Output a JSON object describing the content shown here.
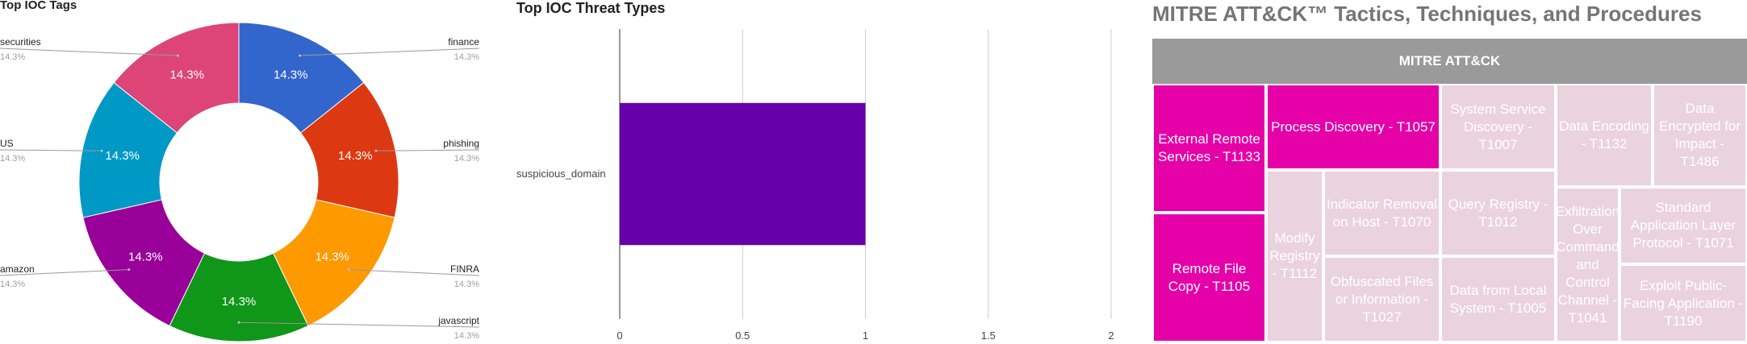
{
  "chart_data": [
    {
      "type": "pie",
      "donut": true,
      "title": "Top IOC Tags",
      "categories": [
        "finance",
        "phishing",
        "FINRA",
        "javascript",
        "amazon",
        "US",
        "securities"
      ],
      "values": [
        14.3,
        14.3,
        14.3,
        14.3,
        14.3,
        14.3,
        14.3
      ],
      "slice_labels": [
        "14.3%",
        "14.3%",
        "14.3%",
        "14.3%",
        "14.3%",
        "14.3%",
        "14.3%"
      ],
      "colors": [
        "#3366cc",
        "#dc3912",
        "#ff9900",
        "#109618",
        "#990099",
        "#0099c6",
        "#dd4477"
      ],
      "legend": "labeled callouts on both sides"
    },
    {
      "type": "bar",
      "orientation": "horizontal",
      "title": "Top IOC Threat Types",
      "categories": [
        "suspicious_domain"
      ],
      "values": [
        1
      ],
      "xlim": [
        0,
        2
      ],
      "xticks": [
        "0",
        "0.5",
        "1",
        "1.5",
        "2"
      ],
      "color": "#6600aa",
      "grid": true
    },
    {
      "type": "treemap",
      "title": "MITRE ATT&CK™ Tactics, Techniques, and Procedures",
      "root": "MITRE ATT&CK",
      "highlight_color": "#e600a8",
      "base_color": "#ead3de",
      "header_color": "#9a9a9a",
      "items": [
        {
          "label": "External Remote Services - T1133",
          "highlighted": true
        },
        {
          "label": "Remote File Copy - T1105",
          "highlighted": true
        },
        {
          "label": "Process Discovery - T1057",
          "highlighted": true
        },
        {
          "label": "Modify Registry - T1112",
          "highlighted": false
        },
        {
          "label": "Indicator Removal on Host - T1070",
          "highlighted": false
        },
        {
          "label": "Obfuscated Files or Information - T1027",
          "highlighted": false
        },
        {
          "label": "System Service Discovery - T1007",
          "highlighted": false
        },
        {
          "label": "Query Registry - T1012",
          "highlighted": false
        },
        {
          "label": "Data from Local System - T1005",
          "highlighted": false
        },
        {
          "label": "Data Encoding - T1132",
          "highlighted": false
        },
        {
          "label": "Data Encrypted for Impact - T1486",
          "highlighted": false
        },
        {
          "label": "Exfiltration Over Command and Control Channel - T1041",
          "highlighted": false
        },
        {
          "label": "Standard Application Layer Protocol - T1071",
          "highlighted": false
        },
        {
          "label": "Exploit Public-Facing Application - T1190",
          "highlighted": false
        }
      ]
    }
  ]
}
